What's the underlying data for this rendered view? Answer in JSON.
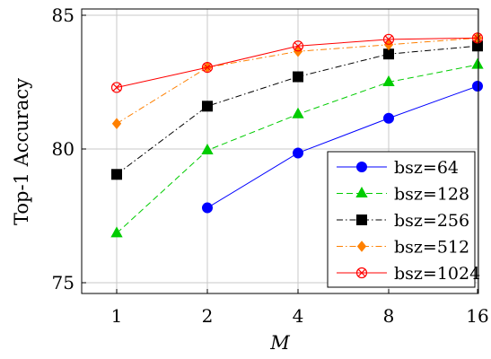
{
  "chart_data": {
    "type": "line",
    "title": "",
    "xlabel": "M",
    "ylabel": "Top-1 Accuracy",
    "categories": [
      "1",
      "2",
      "4",
      "8",
      "16"
    ],
    "ylim": [
      74.5,
      85
    ],
    "yticks": [
      75,
      80,
      85
    ],
    "grid": true,
    "legend_position": "bottom-right",
    "series": [
      {
        "name": "bsz=64",
        "values": [
          null,
          77.8,
          79.85,
          81.15,
          82.35
        ],
        "color": "#0000ff",
        "line": "solid",
        "marker": "circle"
      },
      {
        "name": "bsz=128",
        "values": [
          76.85,
          79.95,
          81.3,
          82.5,
          83.15
        ],
        "color": "#00cc00",
        "line": "dashed",
        "marker": "triangle"
      },
      {
        "name": "bsz=256",
        "values": [
          79.05,
          81.6,
          82.7,
          83.55,
          83.85
        ],
        "color": "#000000",
        "line": "dashdot",
        "marker": "square"
      },
      {
        "name": "bsz=512",
        "values": [
          80.95,
          83.05,
          83.65,
          83.9,
          84.15
        ],
        "color": "#ff8000",
        "line": "dashdot",
        "marker": "diamond"
      },
      {
        "name": "bsz=1024",
        "values": [
          82.3,
          83.05,
          83.85,
          84.1,
          84.15
        ],
        "color": "#ff0000",
        "line": "solid",
        "marker": "circled-x"
      }
    ]
  }
}
